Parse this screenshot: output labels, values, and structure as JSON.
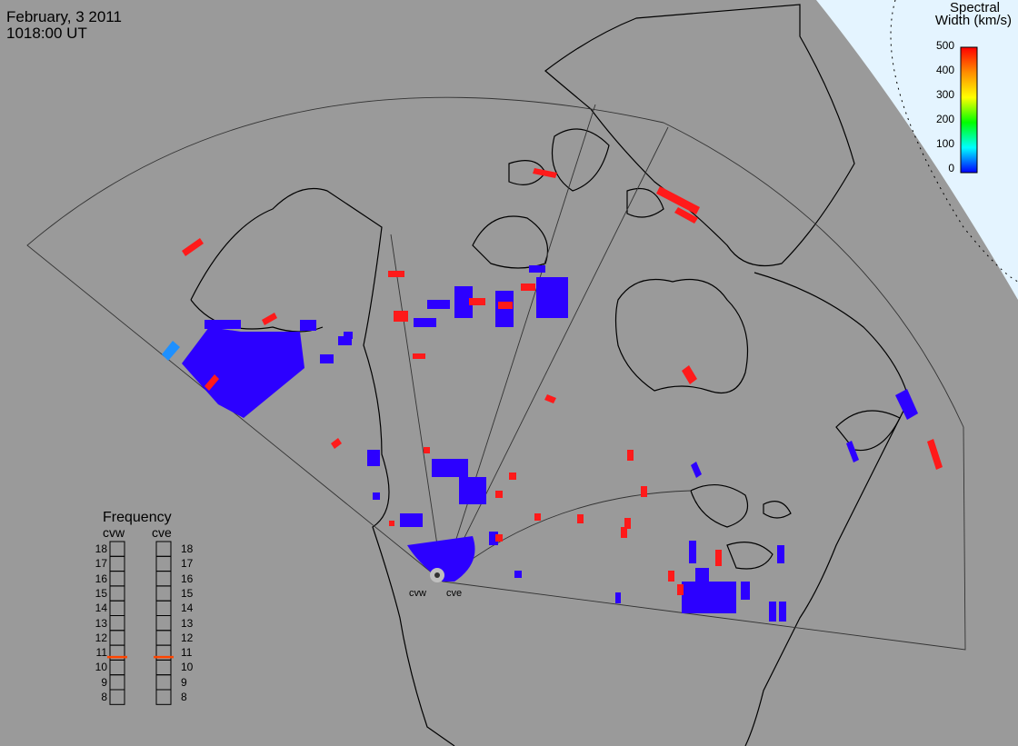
{
  "header": {
    "date": "February, 3 2011",
    "time": "1018:00 UT"
  },
  "colorbar": {
    "title_line1": "Spectral",
    "title_line2": "Width (km/s)",
    "ticks": [
      "500",
      "400",
      "300",
      "200",
      "100",
      "0"
    ],
    "colors": [
      "#ff0000",
      "#ff8c00",
      "#ffff00",
      "#00ff00",
      "#00ffff",
      "#0000ff"
    ]
  },
  "frequency_panel": {
    "title": "Frequency",
    "radars": [
      "cvw",
      "cve"
    ],
    "ticks": [
      "18",
      "17",
      "16",
      "15",
      "14",
      "13",
      "12",
      "11",
      "10",
      "9",
      "8"
    ],
    "selected_mhz": [
      10.7,
      10.7
    ],
    "indicator_color": "#ff4500"
  },
  "sites": [
    {
      "label": "cvw"
    },
    {
      "label": "cve"
    }
  ],
  "colors": {
    "background": "#9a9a9a",
    "daylight": "#e4f4ff",
    "echo_low_width": "#2c00ff",
    "echo_high_width": "#ff1a1a",
    "echo_mid_low_width": "#1e90ff"
  }
}
